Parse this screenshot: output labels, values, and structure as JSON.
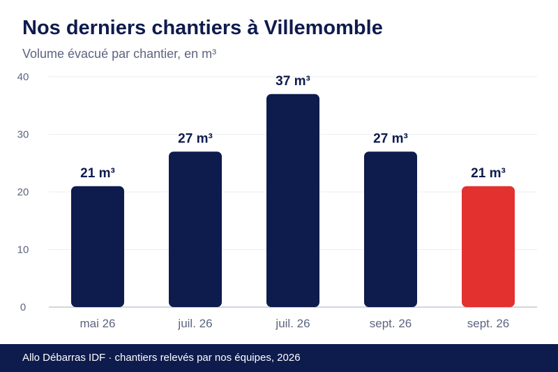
{
  "header": {
    "title": "Nos derniers chantiers à Villemomble",
    "subtitle": "Volume évacué par chantier, en m³"
  },
  "chart_data": {
    "type": "bar",
    "title": "Nos derniers chantiers à Villemomble",
    "subtitle": "Volume évacué par chantier, en m³",
    "xlabel": "",
    "ylabel": "",
    "categories": [
      "mai 26",
      "juil. 26",
      "juil. 26",
      "sept. 26",
      "sept. 26"
    ],
    "values": [
      21,
      27,
      37,
      27,
      21
    ],
    "data_labels": [
      "21 m³",
      "27 m³",
      "37 m³",
      "27 m³",
      "21 m³"
    ],
    "yticks": [
      "0",
      "10",
      "20",
      "30",
      "40"
    ],
    "ylim": [
      0,
      40
    ],
    "grid": true,
    "colors": {
      "bar": "#0e1b4d",
      "highlight": "#e3312f",
      "label": "#0e1b4d",
      "tick": "#5c6480",
      "grid": "#eceef3",
      "axis": "#c4c8d4"
    },
    "highlight_index": 4
  },
  "footer": {
    "text": "Allo Débarras IDF · chantiers relevés par nos équipes, 2026"
  }
}
